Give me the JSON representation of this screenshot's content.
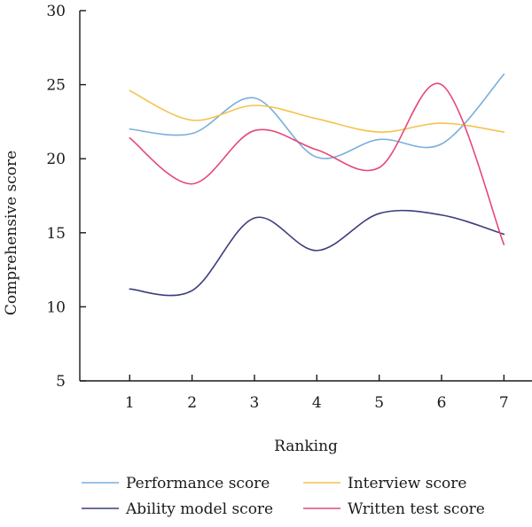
{
  "chart_data": {
    "type": "line",
    "xlabel": "Ranking",
    "ylabel": "Comprehensive score",
    "x": [
      1,
      2,
      3,
      4,
      5,
      6,
      7
    ],
    "xlim": [
      0.2,
      7.45
    ],
    "ylim": [
      5,
      30
    ],
    "yticks": [
      5,
      10,
      15,
      20,
      25,
      30
    ],
    "xticks": [
      1,
      2,
      3,
      4,
      5,
      6,
      7
    ],
    "grid": false,
    "legend_position": "bottom",
    "series": [
      {
        "name": "Performance score",
        "color": "#7aaedc",
        "values": [
          22.0,
          21.7,
          24.1,
          20.1,
          21.3,
          21.0,
          25.7
        ]
      },
      {
        "name": "Interview score",
        "color": "#f5c24e",
        "values": [
          24.6,
          22.6,
          23.6,
          22.7,
          21.8,
          22.4,
          21.8
        ]
      },
      {
        "name": "Ability model score",
        "color": "#3c3d7d",
        "values": [
          11.2,
          11.1,
          16.0,
          13.8,
          16.3,
          16.2,
          14.9
        ]
      },
      {
        "name": "Written test score",
        "color": "#e44878",
        "values": [
          21.4,
          18.3,
          21.9,
          20.6,
          19.4,
          25.0,
          14.2
        ]
      }
    ]
  }
}
